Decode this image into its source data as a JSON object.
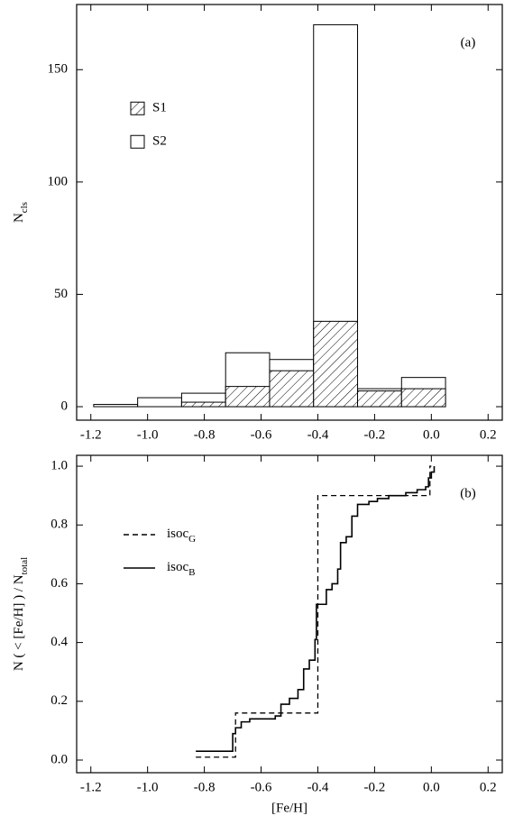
{
  "chart_data": [
    {
      "type": "histogram",
      "annotation": "(a)",
      "ylabel": "N",
      "ylabel_sub": "cls",
      "bins": [
        -1.19,
        -1.035,
        -0.88,
        -0.725,
        -0.57,
        -0.415,
        -0.26,
        -0.105,
        0.05
      ],
      "series": [
        {
          "name": "S2",
          "color": "#ffffff",
          "values": [
            1,
            4,
            6,
            24,
            21,
            170,
            8,
            13
          ]
        },
        {
          "name": "S1",
          "color": "#000000",
          "hatch": true,
          "values": [
            0,
            0,
            2,
            9,
            16,
            38,
            7,
            8
          ]
        }
      ],
      "xlim": [
        -1.25,
        0.25
      ],
      "ylim": [
        -6,
        179
      ],
      "xticks": [
        -1.2,
        {
          "value": -1,
          "label": "-1.0"
        },
        -0.8,
        -0.6,
        -0.4,
        -0.2,
        {
          "value": 0,
          "label": "0.0"
        },
        0.2
      ],
      "yticks": [
        0,
        50,
        100,
        150
      ],
      "legend": "upper left"
    },
    {
      "type": "line",
      "annotation": "(b)",
      "xlabel": "[Fe/H]",
      "ylabel": "N ( < [Fe/H] ) / N",
      "ylabel_sub": "total",
      "series": [
        {
          "name": "isoc",
          "name_sub": "B",
          "color": "#000000",
          "dash": false,
          "x": [
            -0.83,
            -0.7,
            -0.7,
            -0.69,
            -0.69,
            -0.67,
            -0.67,
            -0.64,
            -0.64,
            -0.55,
            -0.55,
            -0.53,
            -0.53,
            -0.5,
            -0.5,
            -0.47,
            -0.47,
            -0.45,
            -0.45,
            -0.43,
            -0.43,
            -0.41,
            -0.41,
            -0.405,
            -0.405,
            -0.37,
            -0.37,
            -0.35,
            -0.35,
            -0.33,
            -0.33,
            -0.32,
            -0.32,
            -0.3,
            -0.3,
            -0.28,
            -0.28,
            -0.26,
            -0.26,
            -0.22,
            -0.22,
            -0.19,
            -0.19,
            -0.15,
            -0.15,
            -0.09,
            -0.09,
            -0.05,
            -0.05,
            -0.02,
            -0.02,
            -0.01,
            -0.01,
            0.0,
            0.0,
            0.01,
            0.01
          ],
          "values": [
            0.03,
            0.03,
            0.09,
            0.09,
            0.11,
            0.11,
            0.13,
            0.13,
            0.14,
            0.14,
            0.15,
            0.15,
            0.19,
            0.19,
            0.21,
            0.21,
            0.24,
            0.24,
            0.31,
            0.31,
            0.34,
            0.34,
            0.41,
            0.41,
            0.53,
            0.53,
            0.58,
            0.58,
            0.6,
            0.6,
            0.65,
            0.65,
            0.74,
            0.74,
            0.76,
            0.76,
            0.83,
            0.83,
            0.87,
            0.87,
            0.88,
            0.88,
            0.89,
            0.89,
            0.9,
            0.9,
            0.91,
            0.91,
            0.92,
            0.92,
            0.93,
            0.93,
            0.96,
            0.96,
            0.98,
            0.98,
            1.0
          ]
        },
        {
          "name": "isoc",
          "name_sub": "G",
          "color": "#000000",
          "dash": true,
          "x": [
            -0.83,
            -0.69,
            -0.69,
            -0.4,
            -0.4,
            -0.005,
            -0.005,
            0.0
          ],
          "values": [
            0.01,
            0.01,
            0.16,
            0.16,
            0.9,
            0.9,
            1.0,
            1.0
          ]
        }
      ],
      "xlim": [
        -1.25,
        0.25
      ],
      "ylim": [
        -0.043,
        1.037
      ],
      "xticks": [
        -1.2,
        {
          "value": -1,
          "label": "-1.0"
        },
        -0.8,
        -0.6,
        -0.4,
        -0.2,
        {
          "value": 0,
          "label": "0.0"
        },
        0.2
      ],
      "yticks": [
        {
          "value": 0,
          "label": "0.0"
        },
        0.2,
        0.4,
        0.6,
        0.8,
        {
          "value": 1,
          "label": "1.0"
        }
      ],
      "legend": "upper left"
    }
  ]
}
